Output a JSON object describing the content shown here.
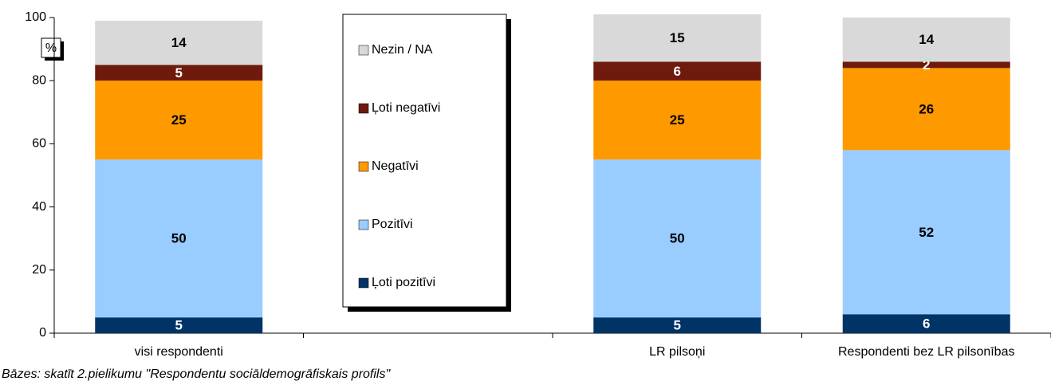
{
  "chart_data": {
    "type": "bar",
    "stacked": true,
    "y_label": "%",
    "note": "Bāzes: skatīt 2.pielikumu \"Respondentu sociāldemogrāfiskais profils\"",
    "categories": [
      "visi respondenti",
      null,
      "LR pilsoņi",
      "Respondenti bez LR pilsonības"
    ],
    "series": [
      {
        "name": "Ļoti pozitīvi",
        "color": "#003366",
        "values": [
          5,
          null,
          5,
          6
        ]
      },
      {
        "name": "Pozitīvi",
        "color": "#99ccff",
        "values": [
          50,
          null,
          50,
          52
        ]
      },
      {
        "name": "Negatīvi",
        "color": "#ff9900",
        "values": [
          25,
          null,
          25,
          26
        ]
      },
      {
        "name": "Ļoti negatīvi",
        "color": "#6e1a0c",
        "values": [
          5,
          null,
          6,
          2
        ]
      },
      {
        "name": "Nezin / NA",
        "color": "#d9d9d9",
        "values": [
          14,
          null,
          15,
          14
        ]
      }
    ],
    "ylim": [
      0,
      100
    ],
    "yticks": [
      0,
      20,
      40,
      60,
      80,
      100
    ]
  }
}
